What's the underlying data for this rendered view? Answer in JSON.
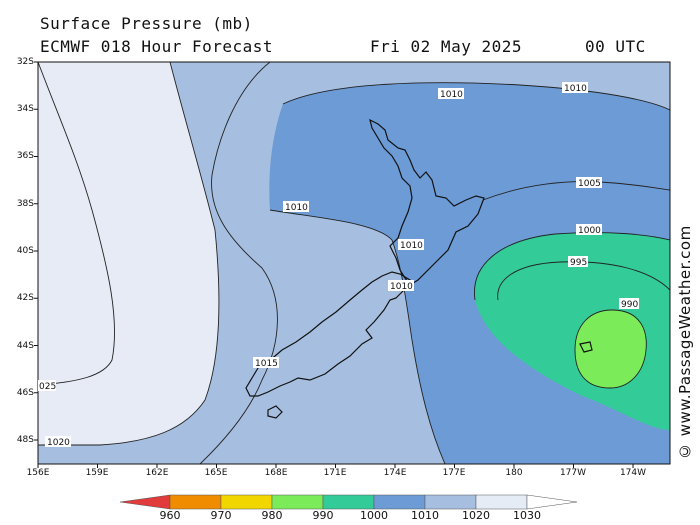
{
  "header": {
    "title": "Surface Pressure (mb)",
    "model": "ECMWF 018 Hour Forecast",
    "date": "Fri 02 May 2025",
    "time": "00 UTC"
  },
  "lat_labels": [
    "32S",
    "34S",
    "36S",
    "38S",
    "40S",
    "42S",
    "44S",
    "46S",
    "48S"
  ],
  "lon_labels": [
    "156E",
    "159E",
    "162E",
    "165E",
    "168E",
    "171E",
    "174E",
    "177E",
    "180",
    "177W",
    "174W"
  ],
  "isobar_labels": [
    "1010",
    "1010",
    "1010",
    "1005",
    "1000",
    "995",
    "990",
    "1010",
    "1010",
    "1015",
    "1020",
    "025"
  ],
  "legend_values": [
    "960",
    "970",
    "980",
    "990",
    "1000",
    "1010",
    "1020",
    "1030"
  ],
  "legend_colors": [
    "#e03c3c",
    "#f08c00",
    "#f2d600",
    "#7ceb5a",
    "#33cc99",
    "#6d9bd6",
    "#a6bfe0",
    "#e6ecf6"
  ],
  "colors": {
    "p1020": "#e6ebf6",
    "p1010": "#a6bfe0",
    "p1000": "#6d9bd6",
    "p990": "#33cc99",
    "p980": "#7ceb5a"
  },
  "credit": "© www.PassageWeather.com"
}
